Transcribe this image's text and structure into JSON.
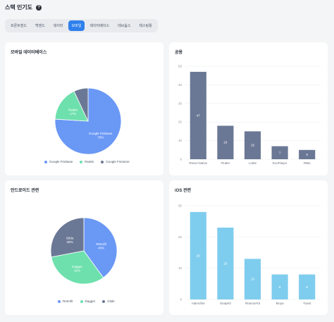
{
  "header": {
    "title": "스택 인기도",
    "help_label": "?"
  },
  "tabs": [
    {
      "label": "프론트엔드",
      "active": false
    },
    {
      "label": "백엔드",
      "active": false
    },
    {
      "label": "데이터",
      "active": false
    },
    {
      "label": "모바일",
      "active": true
    },
    {
      "label": "데이터베이스",
      "active": false
    },
    {
      "label": "데브옵스",
      "active": false
    },
    {
      "label": "테스팅툴",
      "active": false
    }
  ],
  "cards": {
    "mobile_db": {
      "title": "모바일 데이터베이스"
    },
    "common": {
      "title": "공용"
    },
    "android": {
      "title": "안드로이드 관련"
    },
    "ios": {
      "title": "iOS 관련"
    }
  },
  "colors": {
    "accent": "#2f80ed",
    "blue": "#6a98f5",
    "green": "#6ee0ad",
    "slate": "#6b7895",
    "sky": "#7fcdee"
  },
  "chart_data": [
    {
      "id": "mobile_db",
      "type": "pie",
      "categories": [
        "Google Firebase",
        "Realm",
        "Google Firestore"
      ],
      "values": [
        76,
        17,
        7
      ],
      "labels": [
        "Google Firebase\n76%",
        "Realm\n17%",
        ""
      ],
      "colors": [
        "#6a98f5",
        "#6ee0ad",
        "#6b7895"
      ],
      "legend": "bottom"
    },
    {
      "id": "common",
      "type": "bar",
      "categories": [
        "React Native",
        "Flutter",
        "Lottie",
        "ExoPlayer",
        "RIBs"
      ],
      "values": [
        47,
        18,
        15,
        7,
        5
      ],
      "ylim": [
        0,
        50
      ],
      "yticks": [
        0,
        10,
        20,
        30,
        40,
        50
      ],
      "color": "#6b7895",
      "grid": true
    },
    {
      "id": "android",
      "type": "pie",
      "categories": [
        "Retrofit",
        "Dagger",
        "Glide"
      ],
      "values": [
        40,
        32,
        28
      ],
      "labels": [
        "Retrofit\n40%",
        "Dagger\n32%",
        "Glide\n28%"
      ],
      "colors": [
        "#6a98f5",
        "#6ee0ad",
        "#6b7895"
      ],
      "legend": "bottom"
    },
    {
      "id": "ios",
      "type": "bar",
      "categories": [
        "Alamofire",
        "SnapKit",
        "ReactorKit",
        "Moya",
        "Toast"
      ],
      "values": [
        28,
        23,
        13,
        8,
        8
      ],
      "ylim": [
        0,
        30
      ],
      "yticks": [
        0,
        10,
        20,
        30
      ],
      "color": "#7fcdee",
      "grid": true
    }
  ]
}
